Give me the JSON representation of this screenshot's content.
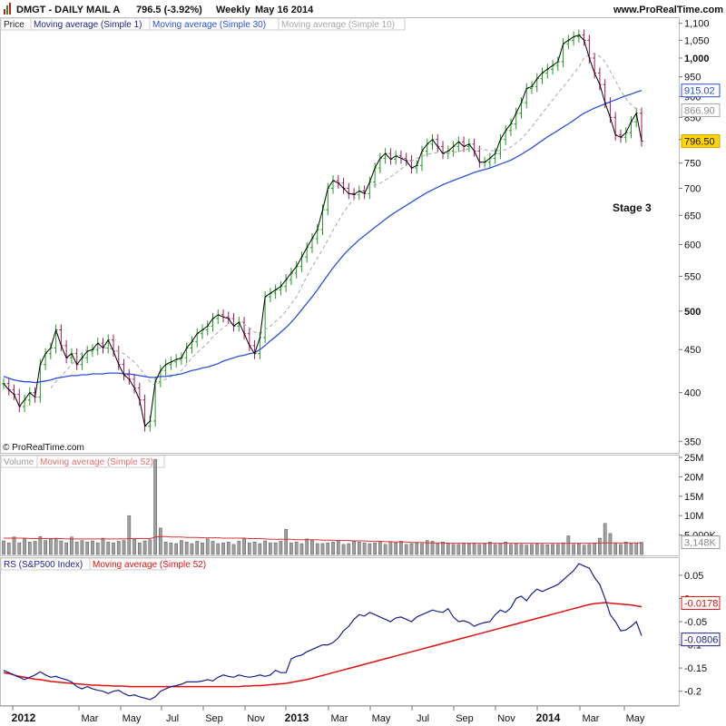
{
  "header": {
    "symbol": "DMGT - DAILY MAIL A",
    "last": "796.5 (-3.92%)",
    "timeframe": "Weekly",
    "date": "May 16 2014",
    "site": "www.ProRealTime.com"
  },
  "copyright": "© ProRealTime.com",
  "annotation": "Stage 3",
  "colors": {
    "ma1": "#000000",
    "ma30": "#2b4fd8",
    "ma10": "#a8a8a8",
    "up": "#1f9a1f",
    "down": "#a0175a",
    "vol": "#a0a0a0",
    "volma": "#e03030",
    "rs": "#1a1f8a",
    "rsma": "#e01010",
    "badge_last": "#ffd400"
  },
  "chart_data": [
    {
      "type": "line",
      "panel": "price",
      "legend": [
        "Price",
        "Moving average (Simple 1)",
        "Moving average (Simple 30)",
        "Moving average (Simple 10)"
      ],
      "scale": "log",
      "ylim": [
        340,
        1110
      ],
      "yticks": [
        350,
        400,
        450,
        500,
        550,
        600,
        650,
        700,
        750,
        800,
        850,
        900,
        950,
        1000,
        1050,
        1100
      ],
      "ytick_labels": [
        "350",
        "400",
        "450",
        "500",
        "550",
        "600",
        "650",
        "700",
        "750",
        "800",
        "850",
        "900",
        "950",
        "1,000",
        "1,050",
        "1,100"
      ],
      "bold_ticks": [
        500,
        1000
      ],
      "badges": [
        {
          "label": "915.02",
          "value": 915.02,
          "kind": "ma30"
        },
        {
          "label": "866.90",
          "value": 866.9,
          "kind": "ma10"
        },
        {
          "label": "796.50",
          "value": 796.5,
          "kind": "last"
        }
      ],
      "x_axis": {
        "labels": [
          "2012",
          "Mar",
          "May",
          "Jul",
          "Sep",
          "Nov",
          "2013",
          "Mar",
          "May",
          "Jul",
          "Sep",
          "Nov",
          "2014",
          "Mar",
          "May"
        ],
        "bold": [
          "2012",
          "2013",
          "2014"
        ]
      },
      "series": [
        {
          "name": "Moving average (Simple 1)",
          "values": [
            410,
            403,
            398,
            385,
            392,
            400,
            395,
            432,
            445,
            452,
            475,
            455,
            440,
            445,
            432,
            440,
            448,
            450,
            458,
            452,
            462,
            448,
            432,
            420,
            415,
            405,
            392,
            365,
            370,
            412,
            425,
            432,
            435,
            438,
            440,
            452,
            460,
            470,
            475,
            480,
            490,
            495,
            492,
            490,
            480,
            485,
            470,
            455,
            445,
            465,
            520,
            525,
            530,
            535,
            545,
            555,
            565,
            580,
            595,
            610,
            625,
            660,
            700,
            715,
            710,
            700,
            690,
            688,
            695,
            690,
            712,
            740,
            760,
            770,
            758,
            765,
            760,
            755,
            740,
            745,
            775,
            790,
            800,
            785,
            770,
            775,
            785,
            795,
            785,
            790,
            775,
            752,
            752,
            760,
            770,
            800,
            820,
            835,
            860,
            885,
            920,
            925,
            945,
            960,
            970,
            980,
            990,
            1040,
            1050,
            1060,
            1065,
            1050,
            1000,
            960,
            930,
            885,
            850,
            810,
            805,
            815,
            840,
            860,
            796.5
          ]
        },
        {
          "name": "Moving average (Simple 30)",
          "values": [
            418,
            416,
            414,
            413,
            412,
            412,
            411,
            412,
            413,
            414,
            416,
            417,
            418,
            419,
            419,
            420,
            420,
            421,
            421,
            421,
            422,
            422,
            422,
            421,
            421,
            420,
            419,
            418,
            417,
            417,
            418,
            418,
            419,
            420,
            421,
            423,
            425,
            426,
            428,
            429,
            431,
            433,
            436,
            438,
            440,
            442,
            443,
            445,
            446,
            450,
            455,
            461,
            466,
            472,
            478,
            485,
            493,
            502,
            511,
            520,
            530,
            541,
            552,
            563,
            573,
            583,
            592,
            600,
            608,
            615,
            622,
            629,
            636,
            643,
            650,
            656,
            662,
            668,
            674,
            680,
            686,
            692,
            697,
            702,
            707,
            711,
            715,
            719,
            723,
            727,
            731,
            734,
            737,
            740,
            744,
            748,
            752,
            756,
            762,
            768,
            775,
            782,
            790,
            798,
            806,
            813,
            820,
            828,
            835,
            843,
            852,
            860,
            866,
            872,
            877,
            882,
            887,
            892,
            897,
            902,
            906,
            911,
            915.02
          ]
        },
        {
          "name": "Moving average (Simple 10)",
          "values": [
            null,
            null,
            null,
            null,
            null,
            null,
            null,
            null,
            null,
            405,
            412,
            418,
            425,
            432,
            440,
            446,
            450,
            452,
            452,
            452,
            452,
            450,
            448,
            445,
            440,
            435,
            428,
            420,
            412,
            408,
            412,
            415,
            418,
            420,
            425,
            432,
            440,
            446,
            452,
            458,
            466,
            472,
            478,
            482,
            484,
            484,
            482,
            478,
            472,
            470,
            475,
            480,
            486,
            492,
            500,
            510,
            520,
            535,
            550,
            565,
            578,
            592,
            608,
            624,
            640,
            655,
            668,
            680,
            690,
            698,
            702,
            706,
            710,
            716,
            722,
            730,
            738,
            746,
            754,
            760,
            764,
            768,
            770,
            772,
            772,
            770,
            772,
            774,
            777,
            780,
            782,
            780,
            778,
            776,
            776,
            776,
            778,
            784,
            792,
            802,
            814,
            828,
            844,
            860,
            876,
            892,
            908,
            924,
            940,
            958,
            976,
            1000,
            1010,
            1012,
            1005,
            990,
            965,
            940,
            915,
            895,
            880,
            870,
            866.9
          ]
        }
      ]
    },
    {
      "type": "bar",
      "panel": "volume",
      "legend": [
        "Volume",
        "Moving average (Simple 52)"
      ],
      "ylim": [
        0,
        25
      ],
      "yticks": [
        5,
        10,
        15,
        20,
        25
      ],
      "ytick_labels": [
        "5,000K",
        "10M",
        "15M",
        "20M",
        "25M"
      ],
      "badge": {
        "label": "3,148K",
        "value": 3.148
      },
      "series": [
        {
          "name": "Volume",
          "unit": "M",
          "values": [
            3.5,
            3.0,
            4.5,
            3.0,
            4.0,
            3.2,
            3.4,
            4.6,
            3.6,
            4.0,
            4.2,
            3.5,
            3.0,
            4.5,
            3.2,
            3.6,
            3.2,
            3.5,
            3.0,
            4.2,
            3.2,
            3.0,
            3.4,
            3.6,
            10.0,
            4.0,
            3.0,
            3.5,
            3.8,
            24.5,
            6.8,
            3.2,
            3.0,
            2.8,
            3.6,
            3.2,
            2.8,
            3.4,
            3.0,
            4.0,
            3.4,
            2.8,
            3.0,
            3.2,
            2.6,
            3.4,
            4.0,
            3.0,
            3.2,
            2.8,
            3.5,
            3.0,
            3.0,
            3.4,
            6.5,
            3.0,
            3.2,
            2.8,
            4.0,
            3.6,
            2.8,
            2.8,
            3.0,
            3.2,
            3.6,
            2.6,
            2.8,
            3.4,
            3.2,
            3.0,
            2.8,
            3.0,
            3.4,
            2.6,
            3.2,
            3.0,
            3.4,
            2.6,
            2.8,
            3.0,
            2.8,
            3.6,
            3.4,
            2.8,
            3.2,
            3.0,
            2.6,
            2.6,
            3.0,
            2.8,
            3.0,
            2.6,
            2.8,
            3.2,
            2.6,
            2.8,
            3.2,
            2.6,
            2.8,
            2.6,
            2.4,
            2.6,
            2.8,
            2.6,
            2.5,
            2.6,
            2.6,
            3.0,
            4.8,
            2.6,
            2.8,
            2.4,
            2.6,
            3.0,
            4.2,
            8.0,
            5.4,
            3.0,
            2.6,
            3.2,
            2.8,
            3.0,
            3.148
          ]
        },
        {
          "name": "Moving average (Simple 52)",
          "unit": "M",
          "values": [
            4.2,
            4.2,
            4.2,
            4.2,
            4.2,
            4.1,
            4.1,
            4.1,
            4.1,
            4.1,
            4.1,
            4.1,
            4.0,
            4.0,
            4.0,
            4.0,
            4.0,
            4.0,
            4.0,
            4.0,
            4.0,
            4.0,
            4.0,
            4.0,
            4.1,
            4.1,
            4.1,
            4.1,
            4.1,
            4.5,
            4.6,
            4.6,
            4.5,
            4.5,
            4.5,
            4.4,
            4.4,
            4.4,
            4.3,
            4.3,
            4.3,
            4.3,
            4.2,
            4.2,
            4.2,
            4.2,
            4.2,
            4.1,
            4.1,
            4.1,
            4.0,
            3.9,
            3.9,
            3.9,
            3.9,
            3.9,
            3.8,
            3.8,
            3.8,
            3.8,
            3.8,
            3.7,
            3.7,
            3.7,
            3.6,
            3.6,
            3.6,
            3.5,
            3.5,
            3.5,
            3.4,
            3.4,
            3.4,
            3.3,
            3.3,
            3.2,
            3.2,
            3.2,
            3.1,
            3.1,
            3.1,
            3.0,
            3.0,
            3.0,
            3.0,
            2.9,
            2.9,
            2.9,
            2.9,
            2.9,
            2.9,
            2.9,
            2.9,
            2.9,
            2.9,
            2.9,
            2.9,
            2.9,
            2.9,
            2.9,
            2.9,
            2.9,
            2.9,
            2.9,
            2.9,
            2.9,
            2.9,
            2.9,
            2.9,
            2.9,
            2.9,
            2.9,
            2.9,
            2.9,
            3.0,
            3.0,
            3.0,
            3.0,
            3.0,
            3.0,
            3.0,
            3.0,
            3.0
          ]
        }
      ]
    },
    {
      "type": "line",
      "panel": "rs",
      "legend": [
        "RS (S&P500 Index)",
        "Moving average (Simple 52)"
      ],
      "ylim": [
        -0.23,
        0.085
      ],
      "yticks": [
        0.05,
        0,
        -0.05,
        -0.1,
        -0.15,
        -0.2
      ],
      "ytick_labels": [
        "0.05",
        "0",
        "-0.05",
        "-0.1",
        "-0.15",
        "-0.2"
      ],
      "badges": [
        {
          "label": "-0.0178",
          "value": -0.0178,
          "kind": "rsma"
        },
        {
          "label": "-0.0806",
          "value": -0.0806,
          "kind": "rs"
        }
      ],
      "series": [
        {
          "name": "RS (S&P500 Index)",
          "values": [
            -0.155,
            -0.16,
            -0.165,
            -0.17,
            -0.175,
            -0.17,
            -0.165,
            -0.158,
            -0.165,
            -0.17,
            -0.168,
            -0.172,
            -0.175,
            -0.18,
            -0.19,
            -0.195,
            -0.19,
            -0.195,
            -0.198,
            -0.2,
            -0.205,
            -0.2,
            -0.198,
            -0.205,
            -0.21,
            -0.208,
            -0.212,
            -0.215,
            -0.218,
            -0.212,
            -0.2,
            -0.195,
            -0.19,
            -0.188,
            -0.185,
            -0.18,
            -0.18,
            -0.18,
            -0.178,
            -0.175,
            -0.178,
            -0.17,
            -0.165,
            -0.168,
            -0.17,
            -0.165,
            -0.168,
            -0.17,
            -0.168,
            -0.165,
            -0.168,
            -0.165,
            -0.155,
            -0.16,
            -0.16,
            -0.13,
            -0.125,
            -0.122,
            -0.115,
            -0.11,
            -0.105,
            -0.1,
            -0.1,
            -0.095,
            -0.085,
            -0.07,
            -0.06,
            -0.045,
            -0.035,
            -0.038,
            -0.03,
            -0.035,
            -0.04,
            -0.045,
            -0.05,
            -0.042,
            -0.04,
            -0.045,
            -0.05,
            -0.04,
            -0.035,
            -0.03,
            -0.025,
            -0.028,
            -0.03,
            -0.022,
            -0.04,
            -0.05,
            -0.048,
            -0.052,
            -0.06,
            -0.055,
            -0.052,
            -0.05,
            -0.035,
            -0.025,
            -0.03,
            -0.02,
            0.0,
            0.005,
            -0.005,
            0.01,
            0.02,
            0.015,
            0.02,
            0.025,
            0.03,
            0.04,
            0.05,
            0.06,
            0.075,
            0.07,
            0.065,
            0.045,
            0.03,
            0.0,
            -0.035,
            -0.05,
            -0.07,
            -0.068,
            -0.06,
            -0.05,
            -0.0806
          ]
        },
        {
          "name": "Moving average (Simple 52)",
          "values": [
            -0.16,
            -0.162,
            -0.165,
            -0.168,
            -0.17,
            -0.172,
            -0.174,
            -0.175,
            -0.177,
            -0.179,
            -0.18,
            -0.181,
            -0.182,
            -0.183,
            -0.184,
            -0.185,
            -0.186,
            -0.187,
            -0.187,
            -0.188,
            -0.188,
            -0.189,
            -0.189,
            -0.189,
            -0.19,
            -0.19,
            -0.19,
            -0.19,
            -0.19,
            -0.19,
            -0.19,
            -0.19,
            -0.19,
            -0.19,
            -0.19,
            -0.19,
            -0.19,
            -0.19,
            -0.19,
            -0.19,
            -0.19,
            -0.19,
            -0.19,
            -0.19,
            -0.19,
            -0.19,
            -0.189,
            -0.189,
            -0.188,
            -0.188,
            -0.187,
            -0.186,
            -0.185,
            -0.184,
            -0.183,
            -0.181,
            -0.179,
            -0.177,
            -0.175,
            -0.172,
            -0.169,
            -0.166,
            -0.163,
            -0.16,
            -0.157,
            -0.154,
            -0.151,
            -0.148,
            -0.145,
            -0.142,
            -0.139,
            -0.136,
            -0.133,
            -0.13,
            -0.127,
            -0.124,
            -0.121,
            -0.118,
            -0.115,
            -0.112,
            -0.109,
            -0.106,
            -0.103,
            -0.1,
            -0.097,
            -0.094,
            -0.091,
            -0.088,
            -0.085,
            -0.082,
            -0.079,
            -0.076,
            -0.073,
            -0.07,
            -0.067,
            -0.064,
            -0.061,
            -0.058,
            -0.055,
            -0.052,
            -0.049,
            -0.046,
            -0.043,
            -0.04,
            -0.037,
            -0.034,
            -0.031,
            -0.028,
            -0.025,
            -0.022,
            -0.019,
            -0.016,
            -0.013,
            -0.011,
            -0.01,
            -0.009,
            -0.01,
            -0.011,
            -0.012,
            -0.013,
            -0.014,
            -0.016,
            -0.0178
          ]
        }
      ]
    }
  ]
}
